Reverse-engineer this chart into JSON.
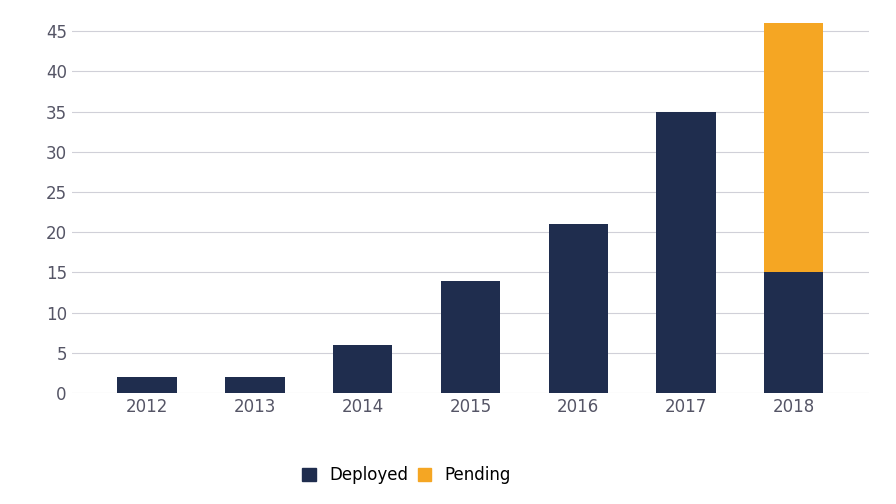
{
  "years": [
    "2012",
    "2013",
    "2014",
    "2015",
    "2016",
    "2017",
    "2018"
  ],
  "deployed": [
    2,
    2,
    6,
    14,
    21,
    35,
    15
  ],
  "pending": [
    0,
    0,
    0,
    0,
    0,
    0,
    31
  ],
  "deployed_color": "#1f2d4e",
  "pending_color": "#f5a623",
  "background_color": "#ffffff",
  "ylim": [
    0,
    47
  ],
  "yticks": [
    0,
    5,
    10,
    15,
    20,
    25,
    30,
    35,
    40,
    45
  ],
  "legend_deployed": "Deployed",
  "legend_pending": "Pending",
  "bar_width": 0.55,
  "grid_color": "#d0d0d8"
}
